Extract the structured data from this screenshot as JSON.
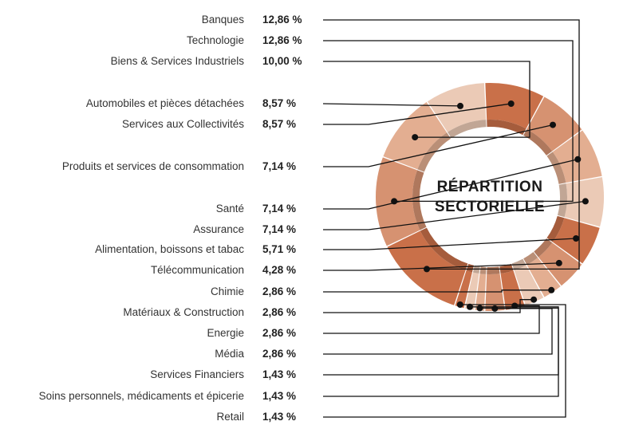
{
  "chart_data": {
    "type": "pie",
    "variant": "donut",
    "title": "RÉPARTITION SECTORIELLE",
    "title_lines": [
      "RÉPARTITION",
      "SECTORIELLE"
    ],
    "unit": "%",
    "slices": [
      {
        "label": "Banques",
        "value": 12.86,
        "display": "12,86 %",
        "color": "#c97049"
      },
      {
        "label": "Technologie",
        "value": 12.86,
        "display": "12,86 %",
        "color": "#d69271"
      },
      {
        "label": "Biens & Services Industriels",
        "value": 10.0,
        "display": "10,00 %",
        "color": "#e3ae91"
      },
      {
        "label": "Automobiles et pièces détachées",
        "value": 8.57,
        "display": "8,57 %",
        "color": "#ebcab6"
      },
      {
        "label": "Services aux Collectivités",
        "value": 8.57,
        "display": "8,57 %",
        "color": "#c97049"
      },
      {
        "label": "Produits et services de consommation",
        "value": 7.14,
        "display": "7,14 %",
        "color": "#d69271"
      },
      {
        "label": "Santé",
        "value": 7.14,
        "display": "7,14 %",
        "color": "#e3ae91"
      },
      {
        "label": "Assurance",
        "value": 7.14,
        "display": "7,14 %",
        "color": "#ebcab6"
      },
      {
        "label": "Alimentation, boissons et tabac",
        "value": 5.71,
        "display": "5,71 %",
        "color": "#c97049"
      },
      {
        "label": "Télécommunication",
        "value": 4.28,
        "display": "4,28 %",
        "color": "#d69271"
      },
      {
        "label": "Chimie",
        "value": 2.86,
        "display": "2,86 %",
        "color": "#e3ae91"
      },
      {
        "label": "Matériaux & Construction",
        "value": 2.86,
        "display": "2,86 %",
        "color": "#ebcab6"
      },
      {
        "label": "Energie",
        "value": 2.86,
        "display": "2,86 %",
        "color": "#c97049"
      },
      {
        "label": "Média",
        "value": 2.86,
        "display": "2,86 %",
        "color": "#d69271"
      },
      {
        "label": "Services Financiers",
        "value": 1.43,
        "display": "1,43 %",
        "color": "#e3ae91"
      },
      {
        "label": "Soins personnels, médicaments et épicerie",
        "value": 1.43,
        "display": "1,43 %",
        "color": "#ebcab6"
      },
      {
        "label": "Retail",
        "value": 1.43,
        "display": "1,43 %",
        "color": "#c97049"
      }
    ],
    "legend_placement": "left",
    "colors": {
      "leader": "#111111",
      "inner_ring": "#b98b6f"
    }
  }
}
